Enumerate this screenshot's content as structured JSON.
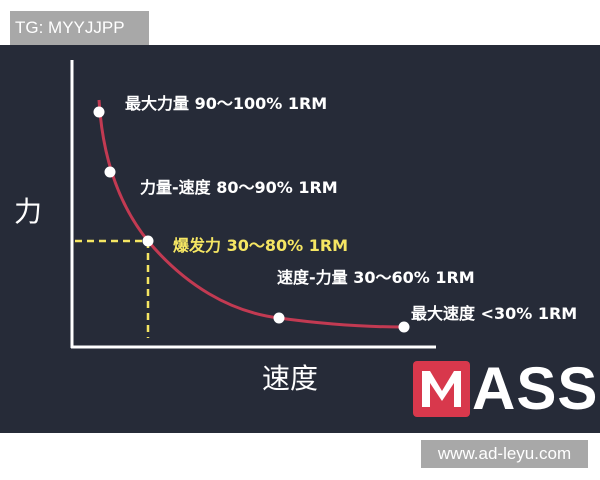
{
  "watermark_top": "TG: MYYJJPP",
  "watermark_bottom": "www.ad-leyu.com",
  "axes": {
    "y_label": "力",
    "x_label": "速度"
  },
  "zones": [
    {
      "label": "最大力量 90～100% 1RM",
      "highlight": false
    },
    {
      "label": "力量-速度 80～90% 1RM",
      "highlight": false
    },
    {
      "label": "爆发力 30～80% 1RM",
      "highlight": true
    },
    {
      "label": "速度-力量 30～60% 1RM",
      "highlight": false
    },
    {
      "label": "最大速度 <30% 1RM",
      "highlight": false
    }
  ],
  "logo": {
    "letter_m": "M",
    "rest": "ASS"
  },
  "colors": {
    "background": "#262b38",
    "curve": "#c23a52",
    "highlight": "#f5e663",
    "logo_red": "#d8384c"
  }
}
